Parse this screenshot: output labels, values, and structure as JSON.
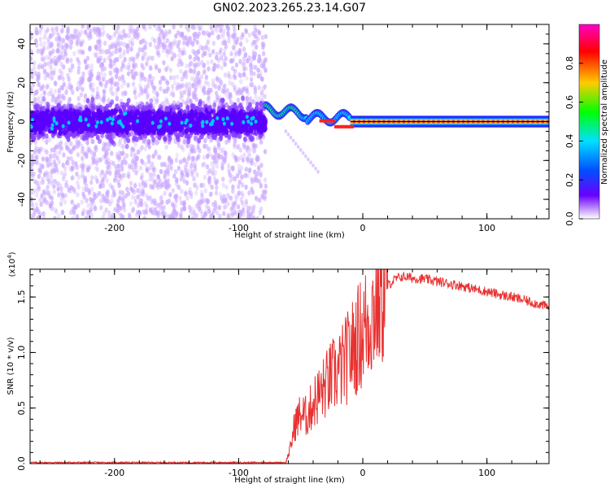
{
  "figure_title": "GN02.2023.265.23.14.G07",
  "colorbar": {
    "label": "Normalized spectral amplitude",
    "ticks": [
      "0.0",
      "0.2",
      "0.4",
      "0.6",
      "0.8"
    ],
    "colors": [
      "#ff00c8",
      "#ff0000",
      "#ffcc00",
      "#00ff00",
      "#00e0ff",
      "#0050ff",
      "#6a00ff",
      "#e8d8ff"
    ]
  },
  "chart_data": [
    {
      "type": "heatmap",
      "xlabel": "Height of straight line (km)",
      "ylabel": "Frequency (Hz)",
      "xlim": [
        -268,
        150
      ],
      "ylim": [
        -50,
        50
      ],
      "xticks": [
        "-200",
        "-100",
        "0",
        "100"
      ],
      "yticks": [
        "-40",
        "-20",
        "0",
        "20",
        "40"
      ],
      "description_points": {
        "noise_region_x": [
          -268,
          -78
        ],
        "transition_x": [
          -78,
          -10
        ],
        "line_region_x": [
          -10,
          150
        ],
        "line_frequency": 0
      },
      "colors": {
        "noise_light": "#c9a6ff",
        "noise_dark": "#5a00ff",
        "line_core": "#ff2020",
        "line_mid": "#00e0ff",
        "line_edge": "#2a2aff"
      }
    },
    {
      "type": "line",
      "xlabel": "Height of straight line (km)",
      "ylabel": "SNR (10 * v/v)",
      "multiplier": "(x10",
      "multiplier_exp": "4",
      "multiplier_close": ")",
      "xlim": [
        -268,
        150
      ],
      "ylim": [
        0,
        1.75
      ],
      "xticks": [
        "-200",
        "-100",
        "0",
        "100"
      ],
      "yticks": [
        "0.0",
        "0.5",
        "1.0",
        "1.5"
      ],
      "color": "#e83030",
      "x": [
        -268,
        -200,
        -100,
        -62,
        -58,
        -55,
        -50,
        -45,
        -40,
        -35,
        -30,
        -25,
        -20,
        -15,
        -10,
        -5,
        0,
        5,
        10,
        15,
        20,
        25,
        30,
        35,
        40,
        50,
        60,
        70,
        80,
        90,
        100,
        110,
        120,
        130,
        140,
        150
      ],
      "y": [
        0.01,
        0.01,
        0.01,
        0.01,
        0.15,
        0.35,
        0.45,
        0.42,
        0.55,
        0.62,
        0.7,
        0.78,
        0.82,
        0.9,
        1.0,
        1.1,
        1.2,
        1.3,
        1.42,
        1.52,
        1.6,
        1.65,
        1.68,
        1.68,
        1.67,
        1.66,
        1.64,
        1.62,
        1.6,
        1.57,
        1.55,
        1.52,
        1.5,
        1.47,
        1.44,
        1.41
      ]
    }
  ]
}
